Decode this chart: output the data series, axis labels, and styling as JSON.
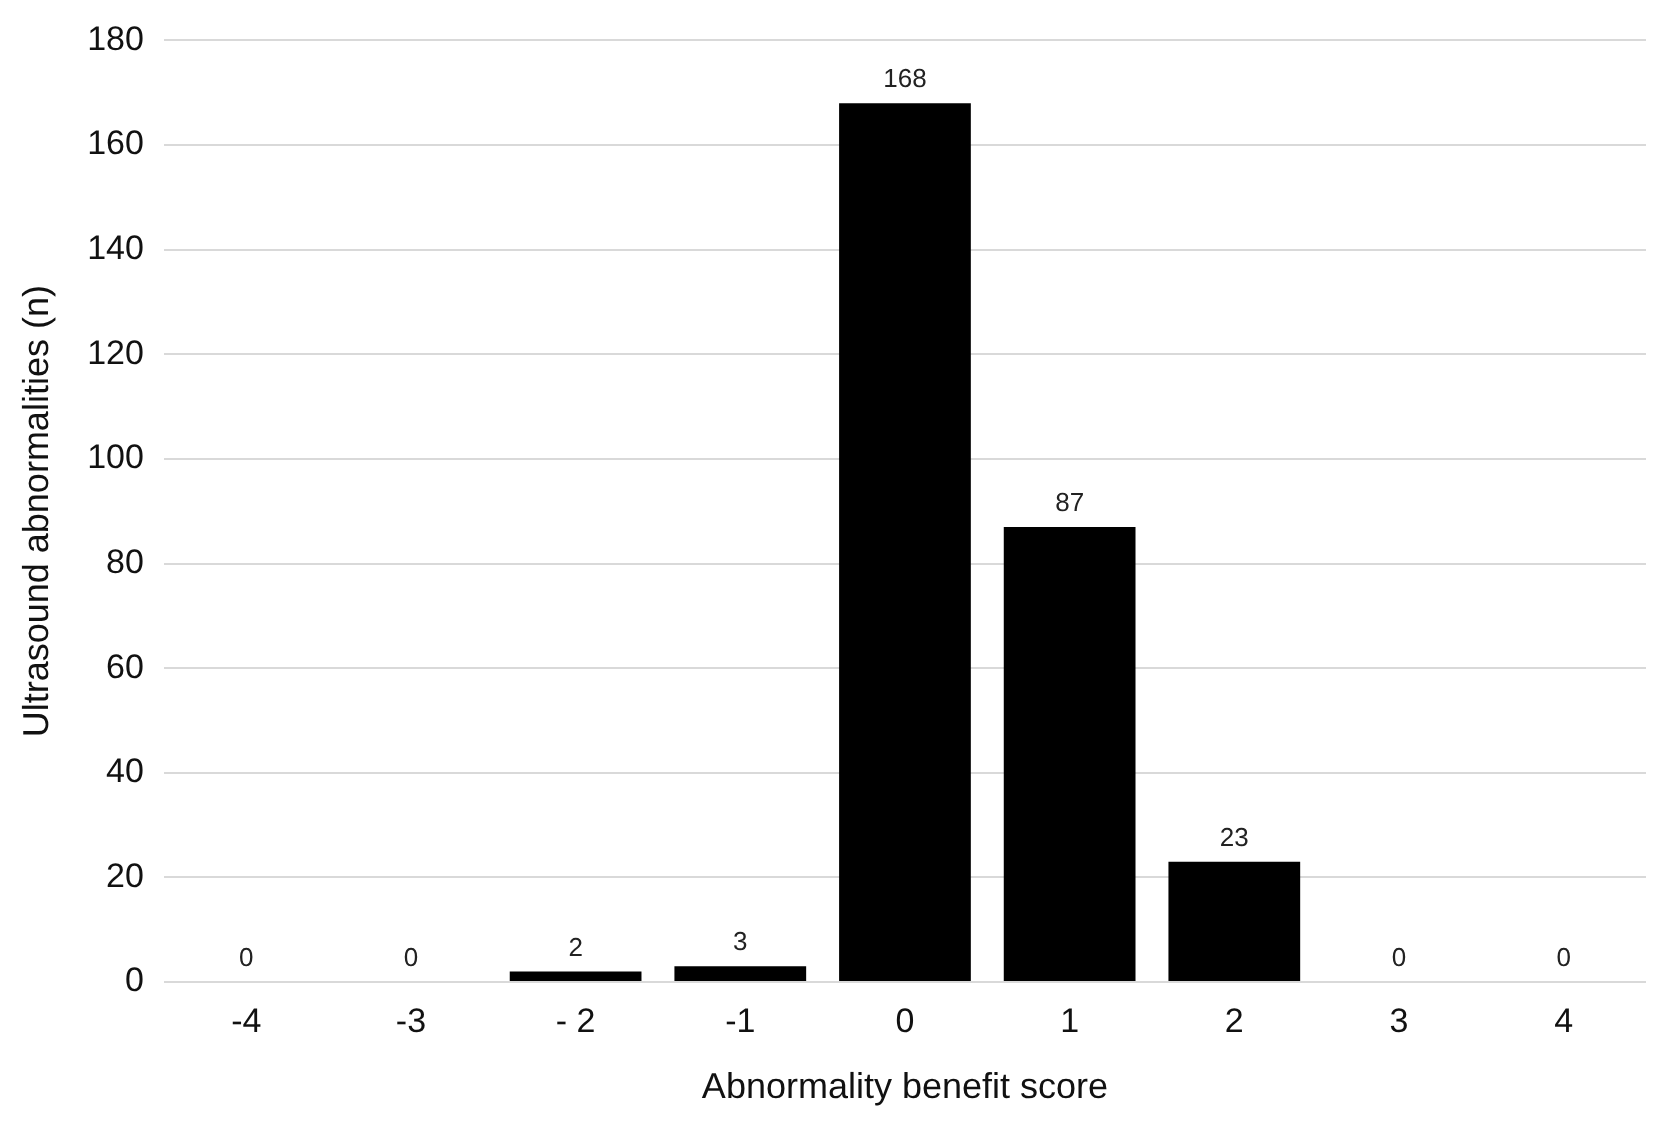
{
  "chart_data": {
    "type": "bar",
    "xlabel": "Abnormality benefit score",
    "ylabel": "Ultrasound abnormalities (n)",
    "categories": [
      "-4",
      "-3",
      "- 2",
      "-1",
      "0",
      "1",
      "2",
      "3",
      "4"
    ],
    "values": [
      0,
      0,
      2,
      3,
      168,
      87,
      23,
      0,
      0
    ],
    "color": "#000000",
    "ylim": [
      0,
      180
    ],
    "yticks": [
      0,
      20,
      40,
      60,
      80,
      100,
      120,
      140,
      160,
      180
    ],
    "grid": "y",
    "data_labels": true
  }
}
